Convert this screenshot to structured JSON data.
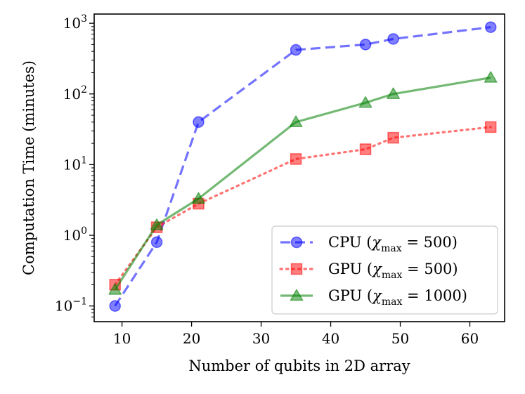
{
  "chart_data": {
    "type": "line",
    "title": "",
    "xlabel": "Number of qubits in 2D array",
    "ylabel": "Computation Time (minutes)",
    "yscale": "log",
    "xlim": [
      6,
      65
    ],
    "ylim": [
      0.06,
      1350
    ],
    "x_ticks": [
      10,
      20,
      30,
      40,
      50,
      60
    ],
    "y_ticks": [
      {
        "value": 0.1,
        "base": "10",
        "exp": "−1"
      },
      {
        "value": 1,
        "base": "10",
        "exp": "0"
      },
      {
        "value": 10,
        "base": "10",
        "exp": "1"
      },
      {
        "value": 100,
        "base": "10",
        "exp": "2"
      },
      {
        "value": 1000,
        "base": "10",
        "exp": "3"
      }
    ],
    "legend_position": "lower-right",
    "series": [
      {
        "name": "CPU",
        "legend_prefix": "CPU (",
        "chi_value": "500",
        "color": "#0000ff",
        "linestyle": "dashed",
        "marker": "circle",
        "x": [
          9,
          15,
          21,
          35,
          45,
          49,
          63
        ],
        "y": [
          0.1,
          0.8,
          40,
          420,
          500,
          600,
          880
        ]
      },
      {
        "name": "GPU",
        "legend_prefix": "GPU (",
        "chi_value": "500",
        "color": "#ff0000",
        "linestyle": "dotted",
        "marker": "square",
        "x": [
          9,
          15,
          21,
          35,
          45,
          49,
          63
        ],
        "y": [
          0.2,
          1.3,
          2.8,
          12,
          16.5,
          24,
          34
        ]
      },
      {
        "name": "GPU",
        "legend_prefix": "GPU (",
        "chi_value": "1000",
        "color": "#008000",
        "linestyle": "solid",
        "marker": "triangle",
        "x": [
          9,
          15,
          21,
          35,
          45,
          49,
          63
        ],
        "y": [
          0.17,
          1.4,
          3.3,
          40,
          75,
          100,
          170
        ]
      }
    ]
  }
}
